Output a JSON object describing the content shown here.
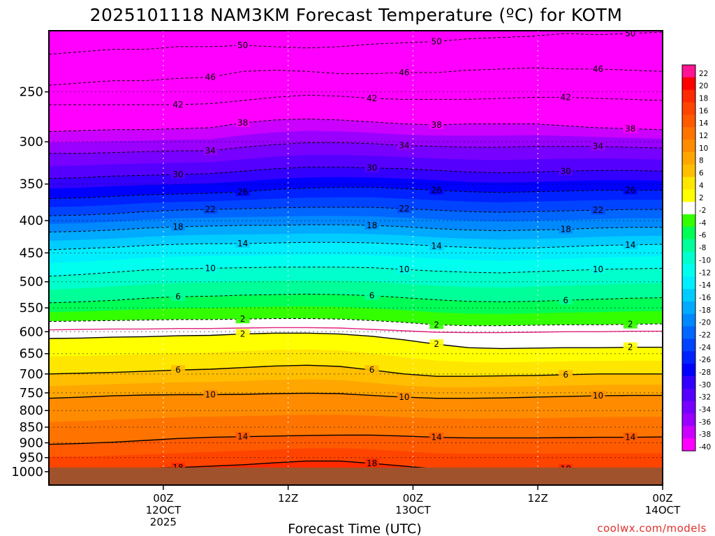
{
  "chart_data": {
    "type": "heatmap",
    "title": "2025101118 NAM3KM Forecast Temperature (ºC) for KOTM",
    "xlabel": "Forecast Time (UTC)",
    "ylabel": "",
    "credit": "coolwx.com/models",
    "x_range_hours": [
      -5,
      54
    ],
    "x_ticks": [
      {
        "hour": 6,
        "lines": [
          "00Z",
          "12OCT",
          "2025"
        ]
      },
      {
        "hour": 18,
        "lines": [
          "12Z"
        ]
      },
      {
        "hour": 30,
        "lines": [
          "00Z",
          "13OCT"
        ]
      },
      {
        "hour": 42,
        "lines": [
          "12Z"
        ]
      },
      {
        "hour": 54,
        "lines": [
          "00Z",
          "14OCT"
        ]
      }
    ],
    "y_range_hpa": [
      200,
      1050
    ],
    "y_ticks": [
      250,
      300,
      350,
      400,
      450,
      500,
      550,
      600,
      650,
      700,
      750,
      800,
      850,
      900,
      950,
      1000
    ],
    "surface_pressure_hpa": 985,
    "colorbar": [
      {
        "label": "22",
        "color": "#ff1493"
      },
      {
        "label": "20",
        "color": "#ff0000"
      },
      {
        "label": "18",
        "color": "#ff2a00"
      },
      {
        "label": "16",
        "color": "#ff4400"
      },
      {
        "label": "14",
        "color": "#ff5a00"
      },
      {
        "label": "12",
        "color": "#ff7400"
      },
      {
        "label": "10",
        "color": "#ff8c00"
      },
      {
        "label": "8",
        "color": "#ffa600"
      },
      {
        "label": "6",
        "color": "#ffbe00"
      },
      {
        "label": "4",
        "color": "#ffe600"
      },
      {
        "label": "2",
        "color": "#ffff00"
      },
      {
        "label": "-2",
        "color": "#ffffff"
      },
      {
        "label": "-4",
        "color": "#33ff00"
      },
      {
        "label": "-6",
        "color": "#00ff55"
      },
      {
        "label": "-8",
        "color": "#00ff99"
      },
      {
        "label": "-10",
        "color": "#00ffcc"
      },
      {
        "label": "-12",
        "color": "#00ffee"
      },
      {
        "label": "-14",
        "color": "#00eeff"
      },
      {
        "label": "-16",
        "color": "#00ccff"
      },
      {
        "label": "-18",
        "color": "#00aaff"
      },
      {
        "label": "-20",
        "color": "#0088ff"
      },
      {
        "label": "-22",
        "color": "#0066ff"
      },
      {
        "label": "-24",
        "color": "#0044ff"
      },
      {
        "label": "-26",
        "color": "#0022ff"
      },
      {
        "label": "-28",
        "color": "#0000ff"
      },
      {
        "label": "-30",
        "color": "#3300ff"
      },
      {
        "label": "-32",
        "color": "#5500ff"
      },
      {
        "label": "-34",
        "color": "#7700ff"
      },
      {
        "label": "-36",
        "color": "#9900ff"
      },
      {
        "label": "-38",
        "color": "#cc00ff"
      },
      {
        "label": "-40",
        "color": "#ff00ff"
      }
    ],
    "contours": [
      {
        "value": -50,
        "label": "50",
        "p": [
          218,
          216,
          214,
          214,
          212,
          212,
          211,
          212,
          213,
          212,
          210,
          209,
          208,
          206,
          205,
          204,
          202,
          203,
          202,
          201
        ]
      },
      {
        "value": -46,
        "label": "46",
        "p": [
          244,
          242,
          240,
          240,
          238,
          237,
          232,
          231,
          232,
          234,
          234,
          233,
          233,
          231,
          230,
          229,
          230,
          230,
          231,
          232
        ]
      },
      {
        "value": -42,
        "label": "42",
        "p": [
          262,
          262,
          262,
          262,
          262,
          261,
          258,
          255,
          253,
          254,
          256,
          257,
          257,
          257,
          256,
          255,
          255,
          256,
          257,
          258
        ]
      },
      {
        "value": -38,
        "label": "38",
        "p": [
          289,
          288,
          287,
          287,
          286,
          285,
          280,
          277,
          276,
          277,
          279,
          281,
          282,
          281,
          281,
          281,
          283,
          285,
          286,
          287
        ]
      },
      {
        "value": -34,
        "label": "34",
        "p": [
          313,
          313,
          312,
          311,
          310,
          310,
          306,
          303,
          301,
          301,
          302,
          304,
          305,
          306,
          306,
          305,
          305,
          305,
          306,
          307
        ]
      },
      {
        "value": -30,
        "label": "30",
        "p": [
          343,
          342,
          340,
          339,
          338,
          337,
          334,
          331,
          329,
          329,
          330,
          331,
          333,
          335,
          336,
          335,
          334,
          333,
          333,
          334
        ]
      },
      {
        "value": -26,
        "label": "26",
        "p": [
          369,
          368,
          366,
          364,
          363,
          362,
          360,
          357,
          355,
          354,
          354,
          356,
          358,
          360,
          361,
          360,
          359,
          358,
          358,
          358
        ]
      },
      {
        "value": -22,
        "label": "22",
        "p": [
          393,
          392,
          390,
          387,
          385,
          384,
          383,
          382,
          381,
          381,
          381,
          383,
          385,
          387,
          388,
          387,
          386,
          385,
          384,
          384
        ]
      },
      {
        "value": -18,
        "label": "18",
        "p": [
          417,
          416,
          414,
          411,
          409,
          408,
          407,
          407,
          406,
          406,
          407,
          409,
          412,
          414,
          415,
          414,
          413,
          411,
          410,
          410
        ]
      },
      {
        "value": -14,
        "label": "14",
        "p": [
          445,
          443,
          441,
          438,
          436,
          435,
          435,
          434,
          433,
          433,
          434,
          436,
          439,
          441,
          443,
          442,
          440,
          438,
          437,
          436
        ]
      },
      {
        "value": -10,
        "label": "10",
        "p": [
          490,
          487,
          483,
          479,
          477,
          476,
          475,
          474,
          474,
          474,
          475,
          478,
          481,
          483,
          484,
          482,
          480,
          478,
          477,
          476
        ]
      },
      {
        "value": -6,
        "label": "6",
        "p": [
          540,
          538,
          535,
          531,
          528,
          527,
          525,
          524,
          523,
          524,
          526,
          530,
          534,
          537,
          538,
          537,
          535,
          533,
          531,
          530
        ]
      },
      {
        "value": -2,
        "label": "2",
        "p": [
          578,
          577,
          576,
          575,
          574,
          574,
          573,
          572,
          572,
          573,
          576,
          580,
          585,
          587,
          587,
          586,
          585,
          585,
          584,
          583
        ]
      },
      {
        "value": 2,
        "label": "2",
        "p": [
          615,
          614,
          612,
          611,
          609,
          608,
          605,
          603,
          603,
          605,
          610,
          618,
          628,
          636,
          638,
          637,
          636,
          636,
          635,
          635
        ]
      },
      {
        "value": 6,
        "label": "6",
        "p": [
          700,
          698,
          696,
          693,
          690,
          688,
          684,
          680,
          678,
          681,
          690,
          700,
          706,
          706,
          705,
          704,
          702,
          700,
          700,
          700
        ]
      },
      {
        "value": 10,
        "label": "10",
        "p": [
          765,
          762,
          758,
          756,
          755,
          755,
          754,
          752,
          751,
          752,
          757,
          762,
          765,
          765,
          764,
          762,
          760,
          758,
          757,
          757
        ]
      },
      {
        "value": 14,
        "label": "14",
        "p": [
          905,
          902,
          898,
          892,
          886,
          882,
          880,
          878,
          876,
          875,
          875,
          878,
          882,
          884,
          884,
          884,
          883,
          882,
          882,
          881
        ]
      },
      {
        "value": 18,
        "label": "18",
        "p": [
          990,
          990,
          990,
          988,
          985,
          980,
          975,
          968,
          962,
          962,
          970,
          980,
          990,
          990,
          990,
          990,
          990,
          990,
          990,
          990
        ]
      }
    ],
    "zero_degree_line_p": [
      596,
      595,
      594,
      594,
      593,
      593,
      592,
      591,
      591,
      592,
      595,
      598,
      601,
      602,
      602,
      601,
      600,
      600,
      599,
      599
    ]
  }
}
